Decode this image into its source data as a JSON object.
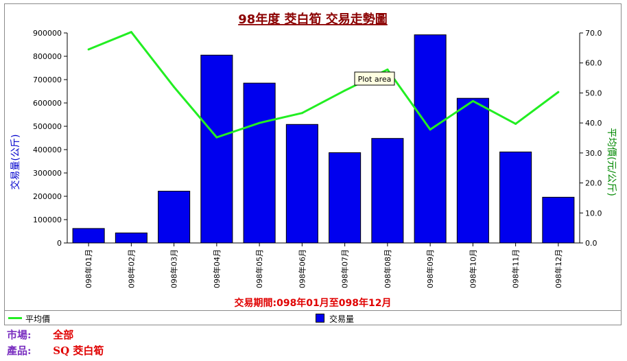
{
  "chart_data": {
    "type": "bar+line",
    "title": "98年度 茭白筍 交易走勢圖",
    "subtitle": "交易期間:098年01月至098年12月",
    "categories": [
      "098年01月",
      "098年02月",
      "098年03月",
      "098年04月",
      "098年05月",
      "098年06月",
      "098年07月",
      "098年08月",
      "098年09月",
      "098年10月",
      "098年11月",
      "098年12月"
    ],
    "bar_series": {
      "name": "交易量",
      "axis": "left",
      "values": [
        62000,
        43000,
        222000,
        805000,
        685000,
        508000,
        387000,
        448000,
        892000,
        620000,
        390000,
        196000
      ]
    },
    "line_series": {
      "name": "平均價",
      "axis": "right",
      "values": [
        64.5,
        70.3,
        52.0,
        35.2,
        40.0,
        43.3,
        50.8,
        57.8,
        37.8,
        47.3,
        39.7,
        50.3
      ]
    },
    "ylabel_left": "交易量(公斤)",
    "ylabel_right": "平均價(元/公斤)",
    "ylim_left": [
      0,
      900000
    ],
    "ylim_right": [
      0,
      70
    ],
    "yticks_left": [
      "900000",
      "800000",
      "700000",
      "600000",
      "500000",
      "400000",
      "300000",
      "200000",
      "100000",
      "0"
    ],
    "yticks_right": [
      "70.0",
      "60.0",
      "50.0",
      "40.0",
      "30.0",
      "20.0",
      "10.0",
      "0.0"
    ],
    "tooltip": "Plot area",
    "legend_position": "bottom",
    "grid": false,
    "colors": {
      "bar": "#0000ee",
      "line": "#22ee22",
      "title": "#8b0000",
      "subtitle": "#e00000",
      "left_label": "#0000cc",
      "right_label": "#008800"
    }
  },
  "legend": {
    "line_label": "平均價",
    "bar_label": "交易量"
  },
  "info": {
    "market_label": "市場:",
    "market_value": "全部",
    "product_label": "產品:",
    "product_value": "SQ 茭白筍"
  }
}
